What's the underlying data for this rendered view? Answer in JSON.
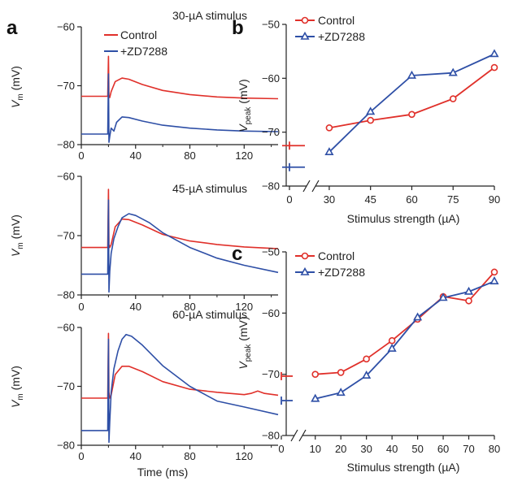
{
  "colors": {
    "control": "#e0302a",
    "zd": "#2e4fa6",
    "axis": "#222222"
  },
  "chart_data": [
    {
      "panel": "a",
      "type": "line",
      "annotation": "30-µA stimulus",
      "xlim": [
        0,
        145
      ],
      "ylim": [
        -80,
        -60
      ],
      "xticks": [
        "0",
        "40",
        "80",
        "120"
      ],
      "yticks": [
        "−80",
        "−70",
        "−60"
      ],
      "ylabel_main": "V",
      "ylabel_sub": "m",
      "ylabel_unit": " (mV)",
      "xlabel": "",
      "legend": [
        "Control",
        "+ZD7288"
      ],
      "series": [
        {
          "name": "Control",
          "x": [
            0,
            19.5,
            20,
            20.4,
            21,
            22,
            25,
            30,
            35,
            45,
            60,
            80,
            100,
            120,
            145
          ],
          "y": [
            -71.8,
            -71.8,
            -65,
            -71.9,
            -72,
            -71,
            -69.3,
            -68.7,
            -68.9,
            -69.8,
            -70.8,
            -71.5,
            -71.9,
            -72.1,
            -72.2
          ]
        },
        {
          "name": "+ZD7288",
          "x": [
            0,
            19.5,
            20,
            20.4,
            21,
            22,
            24,
            26,
            30,
            35,
            45,
            60,
            80,
            100,
            120,
            145
          ],
          "y": [
            -78.2,
            -78.2,
            -68,
            -79.6,
            -78.6,
            -77.2,
            -77.7,
            -76.2,
            -75.3,
            -75.4,
            -76,
            -76.7,
            -77.2,
            -77.5,
            -77.7,
            -77.8
          ]
        }
      ]
    },
    {
      "panel": "",
      "type": "line",
      "annotation": "45-µA stimulus",
      "xlim": [
        0,
        145
      ],
      "ylim": [
        -80,
        -60
      ],
      "xticks": [
        "0",
        "40",
        "80",
        "120"
      ],
      "yticks": [
        "−80",
        "−70",
        "−60"
      ],
      "ylabel_main": "V",
      "ylabel_sub": "m",
      "ylabel_unit": " (mV)",
      "xlabel": "",
      "series": [
        {
          "name": "Control",
          "x": [
            0,
            19.5,
            20,
            20.4,
            21,
            22,
            25,
            30,
            35,
            45,
            60,
            80,
            100,
            120,
            145
          ],
          "y": [
            -72,
            -72,
            -62.2,
            -71.5,
            -72,
            -71.5,
            -68.5,
            -67.2,
            -67.3,
            -68.2,
            -69.8,
            -70.9,
            -71.5,
            -71.9,
            -72.2
          ]
        },
        {
          "name": "+ZD7288",
          "x": [
            0,
            19.5,
            20,
            20.4,
            21,
            22,
            24,
            27,
            30,
            35,
            40,
            50,
            60,
            80,
            100,
            120,
            145
          ],
          "y": [
            -76.5,
            -76.5,
            -64,
            -79.5,
            -76,
            -73,
            -70.5,
            -68.5,
            -67,
            -66.3,
            -66.6,
            -67.8,
            -69.5,
            -72,
            -73.8,
            -75,
            -76.2
          ]
        }
      ]
    },
    {
      "panel": "",
      "type": "line",
      "annotation": "60-µA stimulus",
      "xlim": [
        0,
        145
      ],
      "ylim": [
        -80,
        -60
      ],
      "xticks": [
        "0",
        "40",
        "80",
        "120"
      ],
      "yticks": [
        "−80",
        "−70",
        "−60"
      ],
      "ylabel_main": "V",
      "ylabel_sub": "m",
      "ylabel_unit": " (mV)",
      "xlabel": "Time (ms)",
      "series": [
        {
          "name": "Control",
          "x": [
            0,
            19.5,
            20,
            20.4,
            21,
            22,
            25,
            30,
            35,
            45,
            60,
            80,
            100,
            120,
            125,
            130,
            135,
            145
          ],
          "y": [
            -72,
            -72,
            -61,
            -71,
            -72,
            -71.5,
            -68,
            -66.6,
            -66.6,
            -67.5,
            -69.2,
            -70.5,
            -71,
            -71.4,
            -71.2,
            -70.8,
            -71.2,
            -71.5
          ]
        },
        {
          "name": "+ZD7288",
          "x": [
            0,
            19.5,
            20,
            20.4,
            21,
            22,
            24,
            27,
            30,
            33,
            37,
            45,
            60,
            80,
            100,
            120,
            145
          ],
          "y": [
            -77.5,
            -77.5,
            -62,
            -79.5,
            -76,
            -71,
            -67,
            -64,
            -62,
            -61.2,
            -61.5,
            -63,
            -66.5,
            -70,
            -72.5,
            -73.5,
            -74.8
          ]
        }
      ]
    },
    {
      "panel": "b",
      "type": "line",
      "xlim": [
        25,
        90
      ],
      "ylim": [
        -80,
        -50
      ],
      "xticks": [
        "30",
        "45",
        "60",
        "75",
        "90"
      ],
      "x_break_tick": "0",
      "yticks": [
        "−80",
        "−70",
        "−60",
        "−50"
      ],
      "ylabel_main": "V",
      "ylabel_sub": "peak",
      "ylabel_unit": " (mV)",
      "xlabel": "Stimulus strength (µA)",
      "legend": [
        "Control",
        "+ZD7288"
      ],
      "baseline": {
        "Control": -72.5,
        "+ZD7288": -76.5
      },
      "series": [
        {
          "name": "Control",
          "x": [
            30,
            45,
            60,
            75,
            90
          ],
          "y": [
            -69.2,
            -67.8,
            -66.7,
            -63.8,
            -58
          ]
        },
        {
          "name": "+ZD7288",
          "x": [
            30,
            45,
            60,
            75,
            90
          ],
          "y": [
            -73.7,
            -66.2,
            -59.5,
            -59,
            -55.5
          ]
        }
      ]
    },
    {
      "panel": "c",
      "type": "line",
      "xlim": [
        5,
        80
      ],
      "ylim": [
        -80,
        -50
      ],
      "xticks": [
        "10",
        "20",
        "30",
        "40",
        "50",
        "60",
        "70",
        "80"
      ],
      "x_break_tick": "0",
      "yticks": [
        "−80",
        "−70",
        "−60",
        "−50"
      ],
      "ylabel_main": "V",
      "ylabel_sub": "peak",
      "ylabel_unit": " (mV)",
      "xlabel": "Stimulus strength (µA)",
      "legend": [
        "Control",
        "+ZD7288"
      ],
      "baseline": {
        "Control": -70.3,
        "+ZD7288": -74.3
      },
      "series": [
        {
          "name": "Control",
          "x": [
            10,
            20,
            30,
            40,
            50,
            60,
            70,
            80
          ],
          "y": [
            -70,
            -69.7,
            -67.5,
            -64.5,
            -61,
            -57.3,
            -58,
            -53.3
          ]
        },
        {
          "name": "+ZD7288",
          "x": [
            10,
            20,
            30,
            40,
            50,
            60,
            70,
            80
          ],
          "y": [
            -74,
            -73,
            -70.2,
            -65.8,
            -60.7,
            -57.5,
            -56.5,
            -54.8
          ]
        }
      ]
    }
  ]
}
